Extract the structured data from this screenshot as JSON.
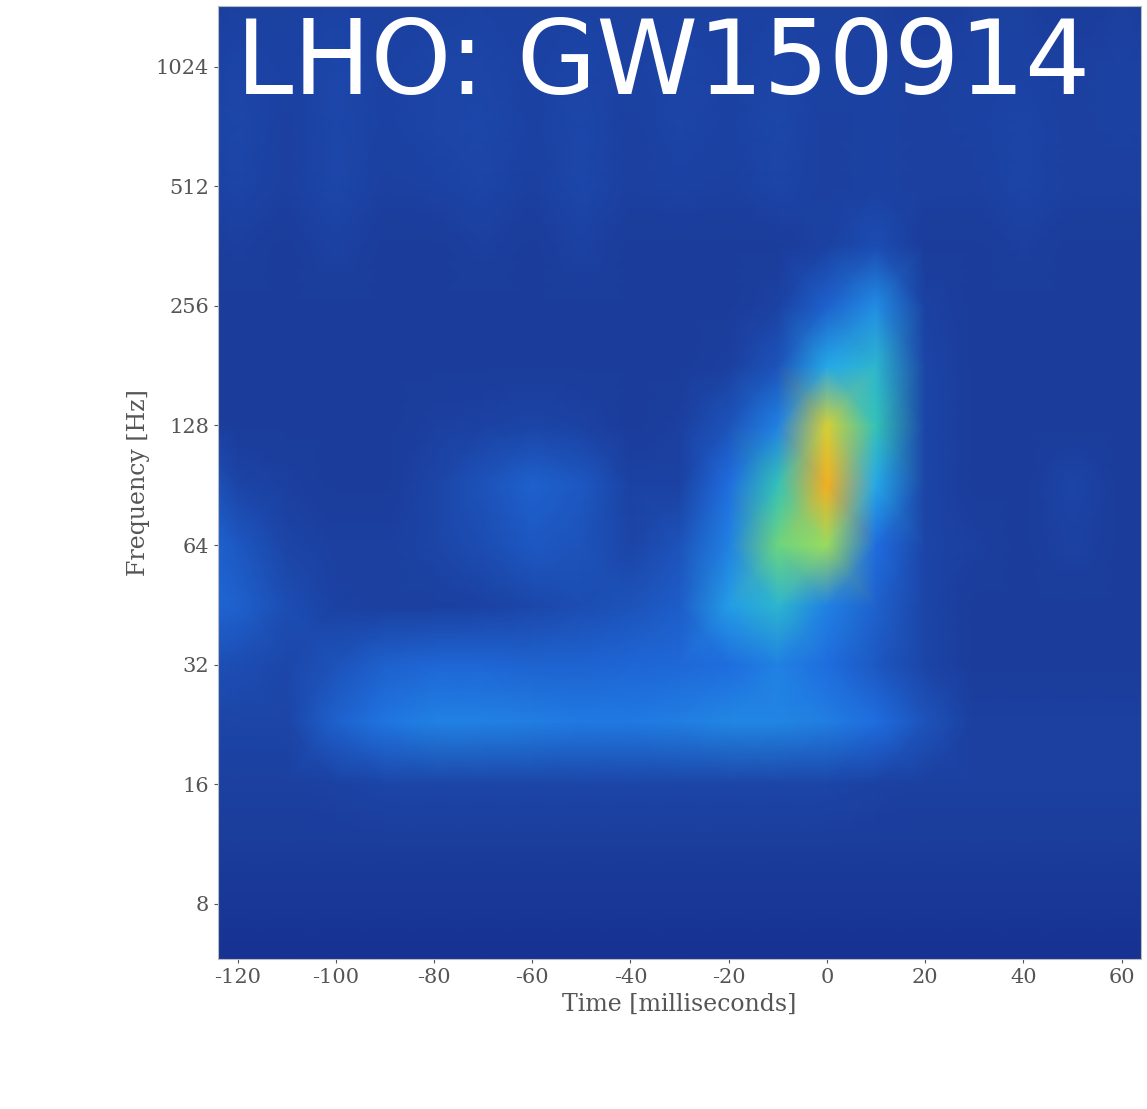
{
  "chart_data": {
    "type": "heatmap",
    "title": "LHO: GW150914",
    "x_label": "Time [milliseconds]",
    "y_label": "Frequency [Hz]",
    "log": "y",
    "grid": false,
    "xlim": [
      -124,
      64
    ],
    "xticks": [
      -120,
      -100,
      -80,
      -60,
      -40,
      -20,
      0,
      20,
      40,
      60
    ],
    "ylim": [
      5.8,
      1460
    ],
    "yticks": [
      8,
      16,
      32,
      64,
      128,
      256,
      512,
      1024
    ],
    "value_range": [
      0,
      1
    ],
    "x": [
      -130,
      -120,
      -110,
      -100,
      -90,
      -80,
      -70,
      -60,
      -50,
      -40,
      -30,
      -20,
      -10,
      0,
      10,
      20,
      30,
      40,
      50,
      60,
      70
    ],
    "y": [
      5.6,
      8,
      11,
      16,
      23,
      32,
      45,
      64,
      91,
      128,
      181,
      256,
      362,
      512,
      724,
      1024,
      1600
    ],
    "cells": [
      [
        0.08,
        0.08,
        0.08,
        0.08,
        0.08,
        0.08,
        0.08,
        0.08,
        0.08,
        0.08,
        0.08,
        0.08,
        0.08,
        0.08,
        0.08,
        0.08,
        0.08,
        0.08,
        0.08,
        0.08,
        0.08
      ],
      [
        0.1,
        0.1,
        0.1,
        0.1,
        0.1,
        0.1,
        0.1,
        0.1,
        0.1,
        0.1,
        0.1,
        0.1,
        0.1,
        0.1,
        0.1,
        0.1,
        0.1,
        0.1,
        0.1,
        0.1,
        0.1
      ],
      [
        0.12,
        0.12,
        0.12,
        0.12,
        0.12,
        0.12,
        0.12,
        0.12,
        0.12,
        0.12,
        0.12,
        0.12,
        0.12,
        0.12,
        0.12,
        0.12,
        0.12,
        0.12,
        0.12,
        0.12,
        0.12
      ],
      [
        0.13,
        0.13,
        0.13,
        0.14,
        0.15,
        0.15,
        0.15,
        0.15,
        0.15,
        0.15,
        0.15,
        0.15,
        0.15,
        0.15,
        0.14,
        0.13,
        0.13,
        0.13,
        0.13,
        0.13,
        0.13
      ],
      [
        0.15,
        0.15,
        0.15,
        0.25,
        0.32,
        0.35,
        0.35,
        0.34,
        0.33,
        0.33,
        0.34,
        0.36,
        0.36,
        0.34,
        0.3,
        0.2,
        0.13,
        0.13,
        0.13,
        0.13,
        0.13
      ],
      [
        0.2,
        0.18,
        0.16,
        0.2,
        0.25,
        0.27,
        0.27,
        0.26,
        0.26,
        0.27,
        0.28,
        0.3,
        0.35,
        0.3,
        0.22,
        0.15,
        0.12,
        0.12,
        0.12,
        0.12,
        0.12
      ],
      [
        0.28,
        0.25,
        0.18,
        0.14,
        0.13,
        0.13,
        0.14,
        0.16,
        0.18,
        0.2,
        0.24,
        0.42,
        0.5,
        0.35,
        0.25,
        0.15,
        0.12,
        0.12,
        0.12,
        0.12,
        0.12
      ],
      [
        0.3,
        0.22,
        0.15,
        0.13,
        0.13,
        0.15,
        0.18,
        0.22,
        0.2,
        0.15,
        0.2,
        0.35,
        0.65,
        0.7,
        0.3,
        0.15,
        0.13,
        0.12,
        0.14,
        0.12,
        0.12
      ],
      [
        0.25,
        0.15,
        0.13,
        0.12,
        0.12,
        0.15,
        0.2,
        0.25,
        0.22,
        0.14,
        0.14,
        0.3,
        0.55,
        0.9,
        0.45,
        0.15,
        0.12,
        0.12,
        0.15,
        0.12,
        0.12
      ],
      [
        0.13,
        0.12,
        0.12,
        0.12,
        0.12,
        0.13,
        0.14,
        0.15,
        0.14,
        0.12,
        0.13,
        0.2,
        0.35,
        0.8,
        0.55,
        0.15,
        0.12,
        0.12,
        0.12,
        0.12,
        0.12
      ],
      [
        0.12,
        0.12,
        0.12,
        0.12,
        0.12,
        0.12,
        0.12,
        0.12,
        0.12,
        0.12,
        0.12,
        0.13,
        0.2,
        0.45,
        0.5,
        0.15,
        0.12,
        0.12,
        0.12,
        0.12,
        0.12
      ],
      [
        0.12,
        0.12,
        0.12,
        0.12,
        0.12,
        0.12,
        0.12,
        0.12,
        0.12,
        0.12,
        0.12,
        0.12,
        0.14,
        0.25,
        0.38,
        0.14,
        0.12,
        0.12,
        0.12,
        0.12,
        0.12
      ],
      [
        0.12,
        0.13,
        0.12,
        0.14,
        0.12,
        0.12,
        0.13,
        0.12,
        0.14,
        0.12,
        0.12,
        0.12,
        0.12,
        0.14,
        0.18,
        0.12,
        0.12,
        0.13,
        0.12,
        0.12,
        0.12
      ],
      [
        0.13,
        0.15,
        0.13,
        0.16,
        0.13,
        0.14,
        0.15,
        0.13,
        0.16,
        0.13,
        0.14,
        0.13,
        0.15,
        0.13,
        0.14,
        0.13,
        0.13,
        0.15,
        0.13,
        0.13,
        0.13
      ],
      [
        0.13,
        0.16,
        0.13,
        0.16,
        0.14,
        0.15,
        0.16,
        0.14,
        0.16,
        0.13,
        0.15,
        0.14,
        0.16,
        0.13,
        0.14,
        0.13,
        0.14,
        0.15,
        0.13,
        0.14,
        0.13
      ],
      [
        0.13,
        0.15,
        0.14,
        0.16,
        0.14,
        0.15,
        0.15,
        0.14,
        0.15,
        0.14,
        0.15,
        0.14,
        0.15,
        0.14,
        0.14,
        0.13,
        0.14,
        0.14,
        0.13,
        0.14,
        0.13
      ],
      [
        0.12,
        0.13,
        0.13,
        0.14,
        0.13,
        0.13,
        0.14,
        0.13,
        0.14,
        0.13,
        0.13,
        0.13,
        0.14,
        0.13,
        0.13,
        0.12,
        0.13,
        0.13,
        0.12,
        0.13,
        0.12
      ]
    ]
  }
}
